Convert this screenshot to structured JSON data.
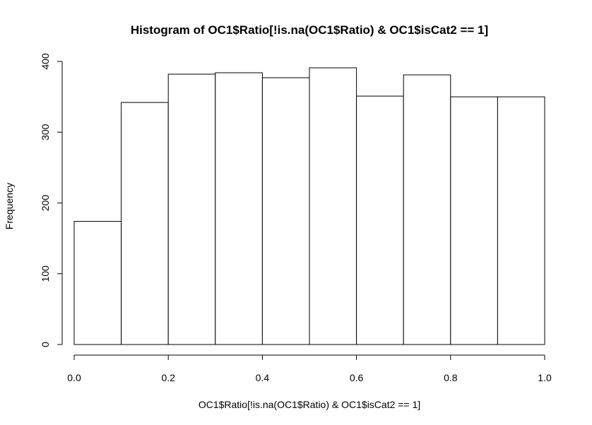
{
  "chart_data": {
    "type": "bar",
    "title": "Histogram of OC1$Ratio[!is.na(OC1$Ratio) & OC1$isCat2 == 1]",
    "xlabel": "OC1$Ratio[!is.na(OC1$Ratio) & OC1$isCat2 == 1]",
    "ylabel": "Frequency",
    "bins": [
      {
        "start": 0.0,
        "end": 0.1,
        "value": 174
      },
      {
        "start": 0.1,
        "end": 0.2,
        "value": 342
      },
      {
        "start": 0.2,
        "end": 0.3,
        "value": 382
      },
      {
        "start": 0.3,
        "end": 0.4,
        "value": 384
      },
      {
        "start": 0.4,
        "end": 0.5,
        "value": 377
      },
      {
        "start": 0.5,
        "end": 0.6,
        "value": 391
      },
      {
        "start": 0.6,
        "end": 0.7,
        "value": 351
      },
      {
        "start": 0.7,
        "end": 0.8,
        "value": 381
      },
      {
        "start": 0.8,
        "end": 0.9,
        "value": 350
      },
      {
        "start": 0.9,
        "end": 1.0,
        "value": 350
      }
    ],
    "xlim": [
      0.0,
      1.0
    ],
    "ylim": [
      0,
      400
    ],
    "xticks": [
      "0.0",
      "0.2",
      "0.4",
      "0.6",
      "0.8",
      "1.0"
    ],
    "yticks": [
      "0",
      "100",
      "200",
      "300",
      "400"
    ],
    "grid": false
  }
}
